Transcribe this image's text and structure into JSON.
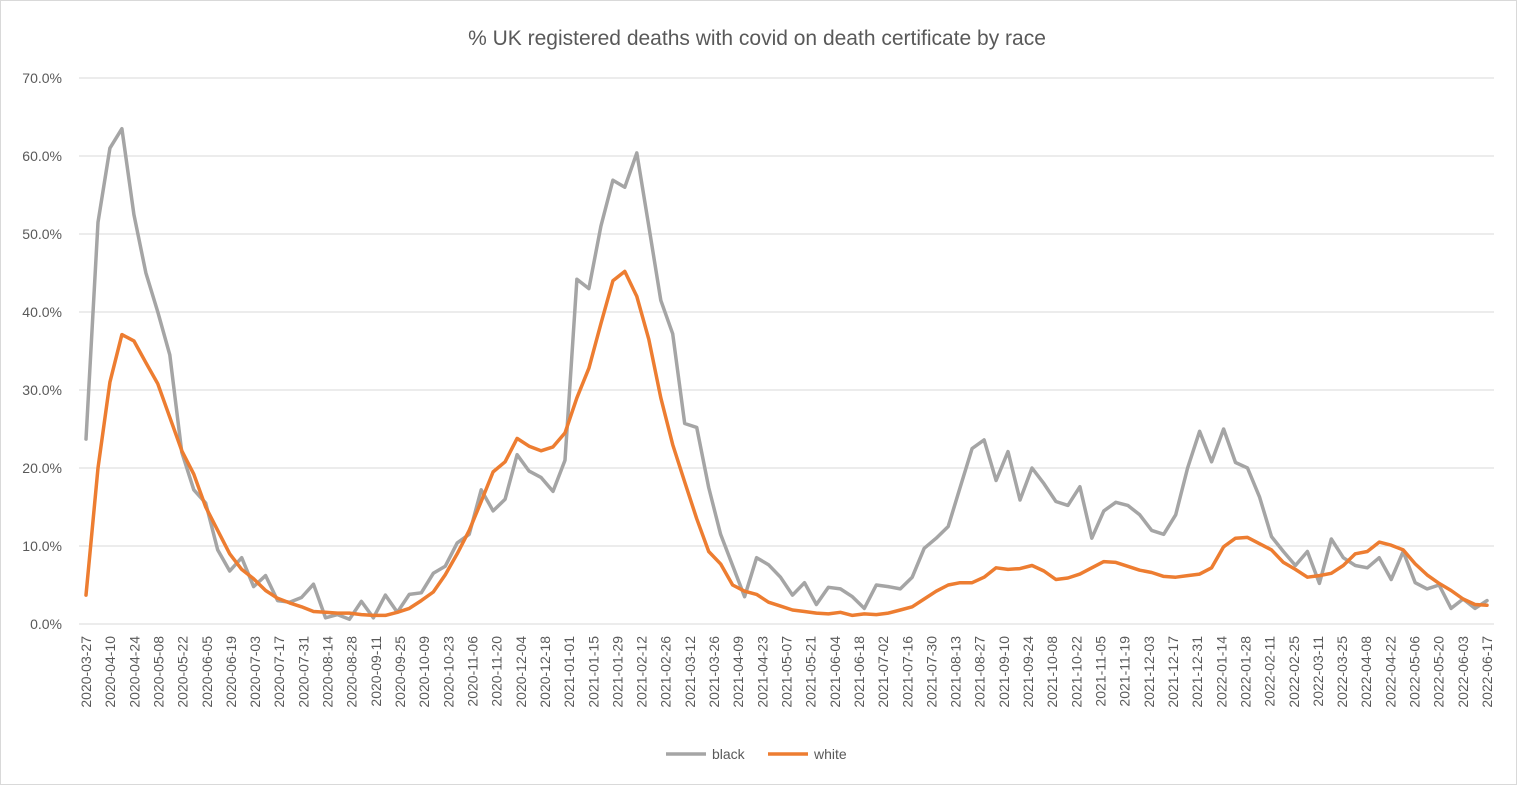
{
  "chart_data": {
    "type": "line",
    "title": "% UK registered deaths with covid on death certificate by race",
    "xlabel": "",
    "ylabel": "",
    "ylim": [
      0,
      0.7
    ],
    "yticks": [
      "0.0%",
      "10.0%",
      "20.0%",
      "30.0%",
      "40.0%",
      "50.0%",
      "60.0%",
      "70.0%"
    ],
    "grid": true,
    "legend_position": "bottom",
    "x_tick_labels": [
      "2020-03-27",
      "2020-04-10",
      "2020-04-24",
      "2020-05-08",
      "2020-05-22",
      "2020-06-05",
      "2020-06-19",
      "2020-07-03",
      "2020-07-17",
      "2020-07-31",
      "2020-08-14",
      "2020-08-28",
      "2020-09-11",
      "2020-09-25",
      "2020-10-09",
      "2020-10-23",
      "2020-11-06",
      "2020-11-20",
      "2020-12-04",
      "2020-12-18",
      "2021-01-01",
      "2021-01-15",
      "2021-01-29",
      "2021-02-12",
      "2021-02-26",
      "2021-03-12",
      "2021-03-26",
      "2021-04-09",
      "2021-04-23",
      "2021-05-07",
      "2021-05-21",
      "2021-06-04",
      "2021-06-18",
      "2021-07-02",
      "2021-07-16",
      "2021-07-30",
      "2021-08-13",
      "2021-08-27",
      "2021-09-10",
      "2021-09-24",
      "2021-10-08",
      "2021-10-22",
      "2021-11-05",
      "2021-11-19",
      "2021-12-03",
      "2021-12-17",
      "2021-12-31",
      "2022-01-14",
      "2022-01-28",
      "2022-02-11",
      "2022-02-25",
      "2022-03-11",
      "2022-03-25",
      "2022-04-08",
      "2022-04-22",
      "2022-05-06",
      "2022-05-20",
      "2022-06-03",
      "2022-06-17"
    ],
    "series": [
      {
        "name": "black",
        "color": "#a5a5a5",
        "values": [
          0.237,
          0.515,
          0.61,
          0.635,
          0.525,
          0.45,
          0.4,
          0.345,
          0.22,
          0.172,
          0.155,
          0.095,
          0.068,
          0.085,
          0.048,
          0.062,
          0.03,
          0.028,
          0.034,
          0.051,
          0.008,
          0.012,
          0.006,
          0.029,
          0.008,
          0.037,
          0.015,
          0.038,
          0.04,
          0.065,
          0.074,
          0.104,
          0.115,
          0.172,
          0.145,
          0.16,
          0.217,
          0.196,
          0.188,
          0.17,
          0.21,
          0.442,
          0.43,
          0.51,
          0.569,
          0.56,
          0.604,
          0.51,
          0.415,
          0.372,
          0.257,
          0.252,
          0.175,
          0.115,
          0.075,
          0.035,
          0.085,
          0.076,
          0.06,
          0.037,
          0.053,
          0.025,
          0.047,
          0.045,
          0.035,
          0.02,
          0.05,
          0.048,
          0.045,
          0.06,
          0.097,
          0.11,
          0.125,
          0.175,
          0.225,
          0.236,
          0.184,
          0.221,
          0.159,
          0.2,
          0.18,
          0.157,
          0.152,
          0.176,
          0.11,
          0.145,
          0.156,
          0.152,
          0.14,
          0.12,
          0.115,
          0.14,
          0.2,
          0.247,
          0.208,
          0.25,
          0.207,
          0.2,
          0.163,
          0.112,
          0.093,
          0.075,
          0.093,
          0.052,
          0.109,
          0.085,
          0.075,
          0.072,
          0.085,
          0.057,
          0.093,
          0.053,
          0.045,
          0.05,
          0.02,
          0.032,
          0.02,
          0.03
        ]
      },
      {
        "name": "white",
        "color": "#ed7d31",
        "values": [
          0.037,
          0.2,
          0.31,
          0.371,
          0.363,
          0.335,
          0.308,
          0.265,
          0.222,
          0.192,
          0.15,
          0.12,
          0.09,
          0.07,
          0.058,
          0.043,
          0.033,
          0.027,
          0.022,
          0.016,
          0.015,
          0.014,
          0.014,
          0.012,
          0.011,
          0.011,
          0.015,
          0.02,
          0.03,
          0.041,
          0.063,
          0.09,
          0.12,
          0.157,
          0.195,
          0.208,
          0.238,
          0.228,
          0.222,
          0.227,
          0.245,
          0.29,
          0.328,
          0.385,
          0.44,
          0.452,
          0.42,
          0.365,
          0.29,
          0.23,
          0.182,
          0.135,
          0.093,
          0.077,
          0.05,
          0.042,
          0.038,
          0.028,
          0.023,
          0.018,
          0.016,
          0.014,
          0.013,
          0.015,
          0.011,
          0.013,
          0.012,
          0.014,
          0.018,
          0.022,
          0.032,
          0.042,
          0.05,
          0.053,
          0.053,
          0.06,
          0.072,
          0.07,
          0.071,
          0.075,
          0.068,
          0.057,
          0.059,
          0.064,
          0.072,
          0.08,
          0.079,
          0.074,
          0.069,
          0.066,
          0.061,
          0.06,
          0.062,
          0.064,
          0.072,
          0.099,
          0.11,
          0.111,
          0.103,
          0.095,
          0.079,
          0.07,
          0.06,
          0.062,
          0.065,
          0.075,
          0.09,
          0.093,
          0.105,
          0.101,
          0.095,
          0.077,
          0.063,
          0.052,
          0.043,
          0.032,
          0.025,
          0.024
        ]
      }
    ]
  }
}
